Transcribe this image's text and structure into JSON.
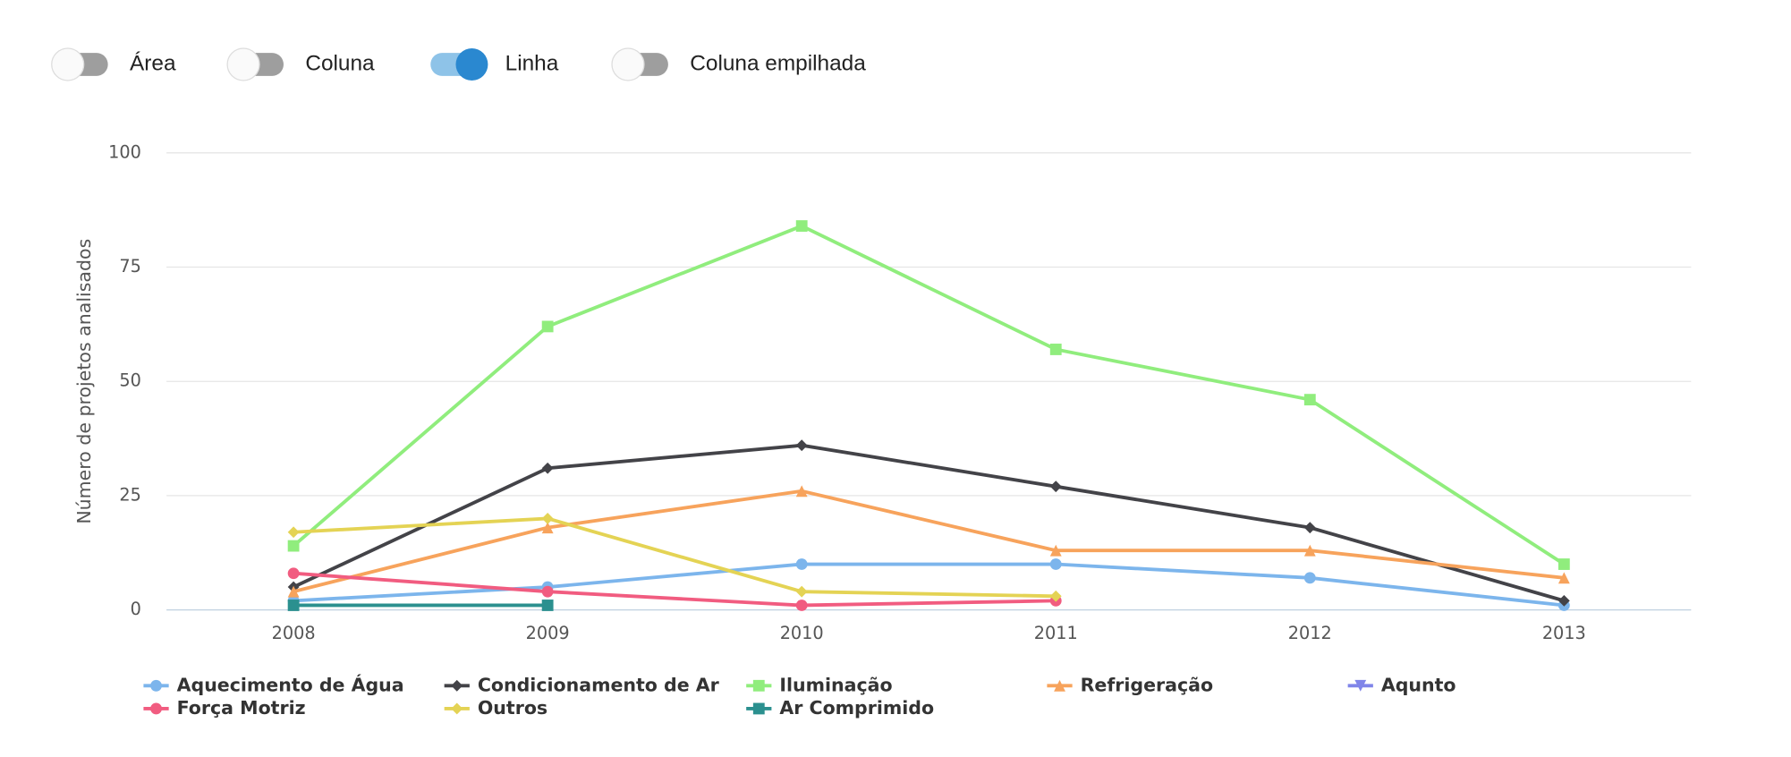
{
  "controls": [
    {
      "label": "Área",
      "on": false
    },
    {
      "label": "Coluna",
      "on": false
    },
    {
      "label": "Linha",
      "on": true
    },
    {
      "label": "Coluna empilhada",
      "on": false
    }
  ],
  "chart_data": {
    "type": "line",
    "y_label": "Número de projetos analisados",
    "categories": [
      "2008",
      "2009",
      "2010",
      "2011",
      "2012",
      "2013"
    ],
    "ylim": [
      0,
      100
    ],
    "yticks": [
      0,
      25,
      50,
      75,
      100
    ],
    "grid": true,
    "series": [
      {
        "name": "Aquecimento de Água",
        "color": "#7cb5ec",
        "marker": "circle",
        "values": [
          2,
          5,
          10,
          10,
          7,
          1
        ]
      },
      {
        "name": "Condicionamento de Ar",
        "color": "#434348",
        "marker": "diamond",
        "values": [
          5,
          31,
          36,
          27,
          18,
          2
        ]
      },
      {
        "name": "Iluminação",
        "color": "#90ed7d",
        "marker": "square",
        "values": [
          14,
          62,
          84,
          57,
          46,
          10
        ]
      },
      {
        "name": "Refrigeração",
        "color": "#f7a35c",
        "marker": "triangle",
        "values": [
          4,
          18,
          26,
          13,
          13,
          7
        ]
      },
      {
        "name": "Aqunto",
        "color": "#8085e9",
        "marker": "triangle-down",
        "values": [
          null,
          null,
          null,
          null,
          null,
          null
        ]
      },
      {
        "name": "Força Motriz",
        "color": "#f15c80",
        "marker": "circle",
        "values": [
          8,
          4,
          1,
          2,
          null,
          null
        ]
      },
      {
        "name": "Outros",
        "color": "#e4d354",
        "marker": "diamond",
        "values": [
          17,
          20,
          4,
          3,
          null,
          null
        ]
      },
      {
        "name": "Ar Comprimido",
        "color": "#2b908f",
        "marker": "square",
        "values": [
          1,
          1,
          null,
          null,
          null,
          null
        ]
      }
    ]
  }
}
